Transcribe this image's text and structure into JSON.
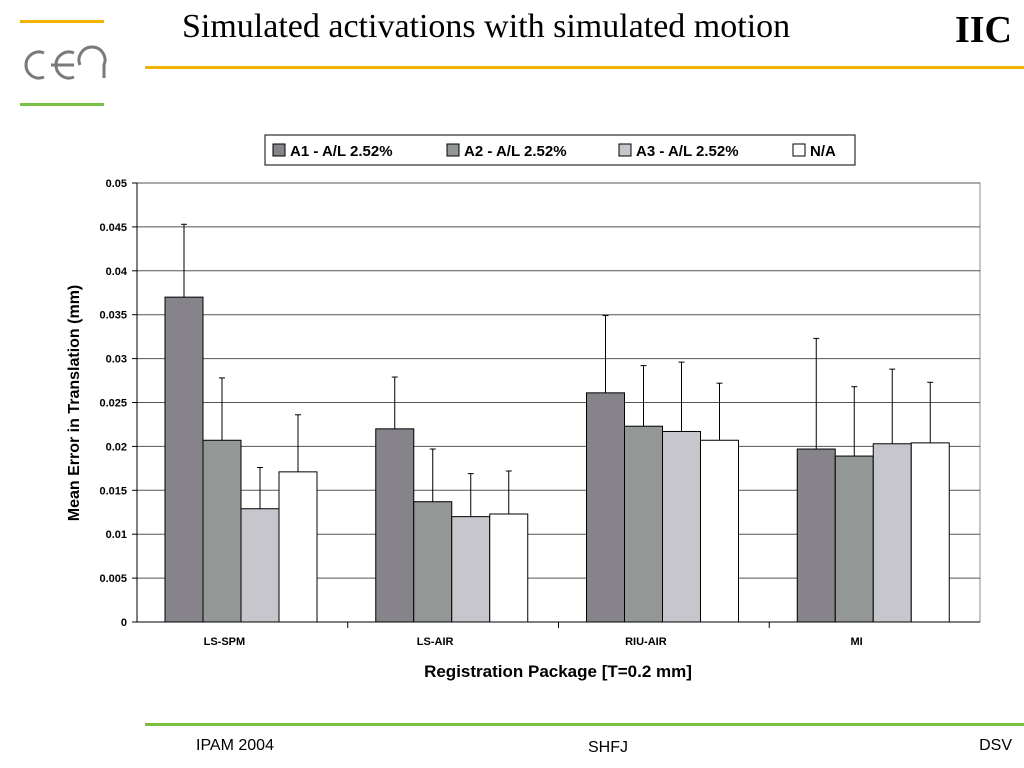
{
  "header": {
    "title": "Simulated activations with simulated motion",
    "corner_label": "IIC"
  },
  "logo": {
    "icon": "cea-logo"
  },
  "footer": {
    "left": "IPAM 2004",
    "center": "SHFJ",
    "right": "DSV"
  },
  "chart_data": {
    "type": "bar",
    "title": "",
    "xlabel": "Registration Package [T=0.2 mm]",
    "ylabel": "Mean Error in Translation (mm)",
    "ylim": [
      0,
      0.05
    ],
    "yticks": [
      0,
      0.005,
      0.01,
      0.015,
      0.02,
      0.025,
      0.03,
      0.035,
      0.04,
      0.045,
      0.05
    ],
    "ytick_labels": [
      "0",
      "0.005",
      "0.01",
      "0.015",
      "0.02",
      "0.025",
      "0.03",
      "0.035",
      "0.04",
      "0.045",
      "0.05"
    ],
    "grid": true,
    "legend_position": "top-center",
    "categories": [
      "LS-SPM",
      "LS-AIR",
      "RIU-AIR",
      "MI"
    ],
    "series": [
      {
        "name": "A1 - A/L 2.52%",
        "color": "#86848a",
        "values": [
          0.037,
          0.022,
          0.0261,
          0.0197
        ],
        "errors": [
          0.0083,
          0.0059,
          0.0088,
          0.0126
        ]
      },
      {
        "name": "A2 - A/L 2.52%",
        "color": "#939795",
        "values": [
          0.0207,
          0.0137,
          0.0223,
          0.0189
        ],
        "errors": [
          0.0071,
          0.006,
          0.0069,
          0.0079
        ]
      },
      {
        "name": "A3 - A/L 2.52%",
        "color": "#c7c6cc",
        "values": [
          0.0129,
          0.012,
          0.0217,
          0.0203
        ],
        "errors": [
          0.0047,
          0.0049,
          0.0079,
          0.0085
        ]
      },
      {
        "name": "N/A",
        "color": "#ffffff",
        "values": [
          0.0171,
          0.0123,
          0.0207,
          0.0204
        ],
        "errors": [
          0.0065,
          0.0049,
          0.0065,
          0.0069
        ]
      }
    ]
  }
}
